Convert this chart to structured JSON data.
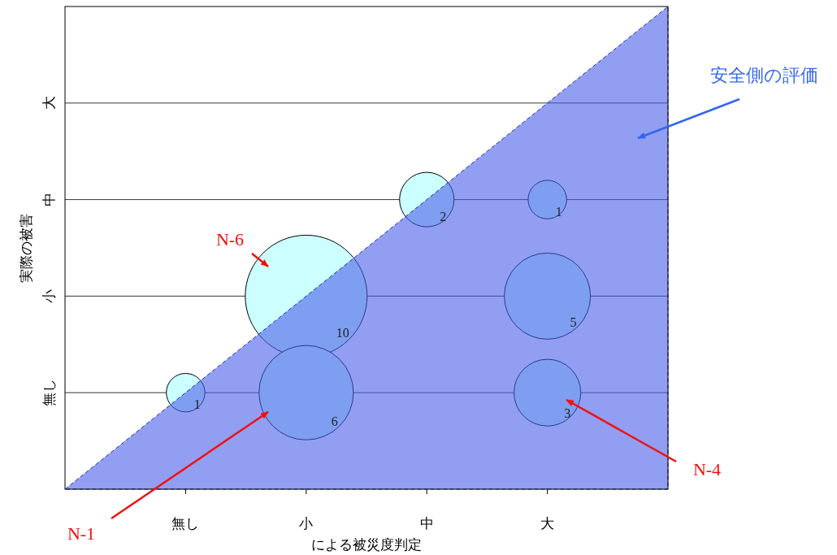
{
  "chart_data": {
    "type": "heatmap",
    "xlabel": "による被災度判定",
    "ylabel": "実際の被害",
    "categories": [
      "無し",
      "小",
      "中",
      "大"
    ],
    "y_categories": [
      "大",
      "中",
      "小",
      "無し"
    ],
    "grid": "y",
    "color": "#ccffff",
    "data_labels": true,
    "cells": [
      [
        null,
        null,
        null,
        null
      ],
      [
        null,
        null,
        2,
        1
      ],
      [
        null,
        10,
        null,
        5
      ],
      [
        1,
        6,
        null,
        3
      ]
    ],
    "annotations": [
      "安全側の評価",
      "N-6",
      "N-1",
      "N-4"
    ]
  }
}
